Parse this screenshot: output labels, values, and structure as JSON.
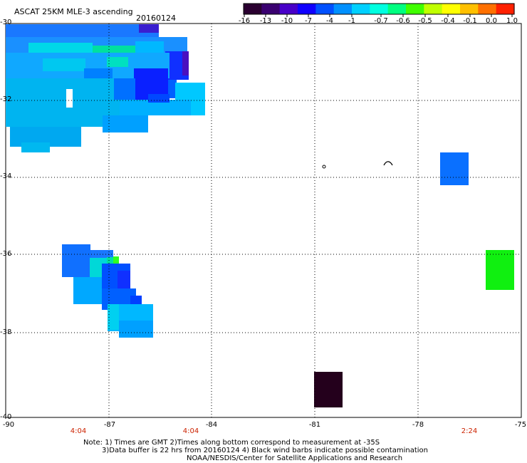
{
  "title": "ASCAT 25KM MLE-3 ascending",
  "date": "20160124",
  "colorbar": {
    "labels": [
      "-16",
      "-13",
      "-10",
      "-7",
      "-4",
      "-1",
      "-0.7",
      "-0.6",
      "-0.5",
      "-0.4",
      "-0.1",
      "0.0",
      "1.0"
    ],
    "colors": [
      "#2a0030",
      "#3a0070",
      "#4800c8",
      "#1000ff",
      "#0050ff",
      "#0090ff",
      "#00d0ff",
      "#00ffe0",
      "#00ff80",
      "#40ff00",
      "#c0ff00",
      "#ffff00",
      "#ffc000",
      "#ff7000",
      "#ff2000"
    ]
  },
  "axes": {
    "lat_labels": [
      "-30",
      "-32",
      "-34",
      "-36",
      "-38",
      "-40"
    ],
    "lon_labels": [
      "-90",
      "-87",
      "-84",
      "-81",
      "-78",
      "-75"
    ]
  },
  "times": [
    "4:04",
    "4:04",
    "2:24"
  ],
  "notes": {
    "line1": "Note: 1) Times are GMT 2)Times along bottom correspond to measurement at -35S",
    "line2": "3)Data buffer is 22 hrs from 20160124 4) Black wind barbs indicate possible contamination",
    "line3": "NOAA/NESDIS/Center for Satellite Applications and Research"
  },
  "colors": {
    "background": "#ffffff",
    "time_text": "#cc2200",
    "grid": "#000000"
  }
}
